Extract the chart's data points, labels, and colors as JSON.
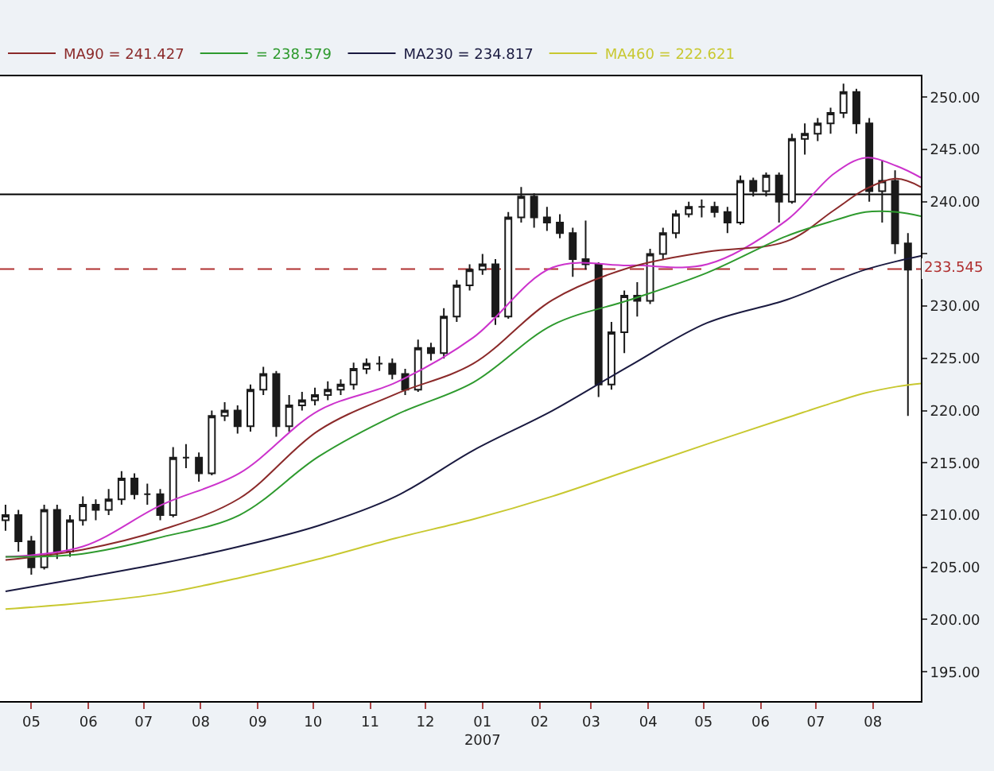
{
  "chart_data": {
    "type": "candlestick",
    "color": "#1a1a1a",
    "x": [
      "2006-04-17",
      "2006-04-24",
      "2006-05-01",
      "2006-05-08",
      "2006-05-15",
      "2006-05-22",
      "2006-05-29",
      "2006-06-05",
      "2006-06-12",
      "2006-06-19",
      "2006-06-26",
      "2006-07-03",
      "2006-07-10",
      "2006-07-17",
      "2006-07-24",
      "2006-07-31",
      "2006-08-07",
      "2006-08-14",
      "2006-08-21",
      "2006-08-28",
      "2006-09-04",
      "2006-09-11",
      "2006-09-18",
      "2006-09-25",
      "2006-10-02",
      "2006-10-09",
      "2006-10-16",
      "2006-10-23",
      "2006-10-30",
      "2006-11-06",
      "2006-11-13",
      "2006-11-20",
      "2006-11-27",
      "2006-12-04",
      "2006-12-11",
      "2006-12-18",
      "2006-12-25",
      "2007-01-01",
      "2007-01-08",
      "2007-01-15",
      "2007-01-22",
      "2007-01-29",
      "2007-02-05",
      "2007-02-12",
      "2007-02-19",
      "2007-02-26",
      "2007-03-05",
      "2007-03-12",
      "2007-03-19",
      "2007-03-26",
      "2007-04-02",
      "2007-04-09",
      "2007-04-16",
      "2007-04-23",
      "2007-04-30",
      "2007-05-07",
      "2007-05-14",
      "2007-05-21",
      "2007-05-28",
      "2007-06-04",
      "2007-06-11",
      "2007-06-18",
      "2007-06-25",
      "2007-07-02",
      "2007-07-09",
      "2007-07-16",
      "2007-07-23",
      "2007-07-30",
      "2007-08-06",
      "2007-08-13",
      "2007-08-20"
    ],
    "ohlc": [
      [
        209.5,
        211,
        208.5,
        210
      ],
      [
        210,
        210.5,
        206.5,
        207.5
      ],
      [
        207.5,
        208,
        204.3,
        205
      ],
      [
        205,
        211,
        204.8,
        210.5
      ],
      [
        210.5,
        211,
        205.8,
        206.5
      ],
      [
        206.5,
        210,
        206,
        209.5
      ],
      [
        209.5,
        211.8,
        209,
        211
      ],
      [
        211,
        211.5,
        209.5,
        210.5
      ],
      [
        210.5,
        212.5,
        210,
        211.5
      ],
      [
        211.5,
        214.2,
        211,
        213.5
      ],
      [
        213.5,
        214,
        211.5,
        212
      ],
      [
        212,
        213,
        211,
        212
      ],
      [
        212,
        212.5,
        209.5,
        210
      ],
      [
        210,
        216.5,
        209.8,
        215.5
      ],
      [
        215.5,
        216.8,
        214.5,
        215.5
      ],
      [
        215.5,
        216,
        213.2,
        214
      ],
      [
        214,
        220,
        213.8,
        219.5
      ],
      [
        219.5,
        220.8,
        219,
        220
      ],
      [
        220,
        220.5,
        217.8,
        218.5
      ],
      [
        218.5,
        222.5,
        218,
        222
      ],
      [
        222,
        224.2,
        221.5,
        223.5
      ],
      [
        223.5,
        223.8,
        217.5,
        218.5
      ],
      [
        218.5,
        221.5,
        218,
        220.5
      ],
      [
        220.5,
        221.8,
        220,
        221
      ],
      [
        221,
        222.2,
        220.5,
        221.5
      ],
      [
        221.5,
        222.8,
        221,
        222
      ],
      [
        222,
        223,
        221.5,
        222.5
      ],
      [
        222.5,
        224.6,
        222,
        224
      ],
      [
        224,
        225,
        223.5,
        224.5
      ],
      [
        224.5,
        225.2,
        223.8,
        224.5
      ],
      [
        224.5,
        225,
        223,
        223.5
      ],
      [
        223.5,
        224,
        221.5,
        222
      ],
      [
        222,
        226.8,
        221.8,
        226
      ],
      [
        226,
        226.5,
        224.8,
        225.5
      ],
      [
        225.5,
        229.8,
        225,
        229
      ],
      [
        229,
        232.5,
        228.5,
        232
      ],
      [
        232,
        234,
        231.5,
        233.5
      ],
      [
        233.5,
        235,
        233,
        234
      ],
      [
        234,
        234.5,
        228.2,
        229
      ],
      [
        229,
        239,
        228.8,
        238.5
      ],
      [
        238.5,
        241.4,
        238,
        240.5
      ],
      [
        240.5,
        240.8,
        237.5,
        238.5
      ],
      [
        238.5,
        239.5,
        237.2,
        238
      ],
      [
        238,
        238.8,
        236.5,
        237
      ],
      [
        237,
        237.5,
        232.8,
        234.5
      ],
      [
        234.5,
        238.2,
        233.5,
        234
      ],
      [
        234,
        234.2,
        221.3,
        222.5
      ],
      [
        222.5,
        228.5,
        222,
        227.5
      ],
      [
        227.5,
        231.5,
        225.5,
        231
      ],
      [
        231,
        232.3,
        229,
        230.5
      ],
      [
        230.5,
        235.5,
        230.2,
        235
      ],
      [
        235,
        237.5,
        234.5,
        237
      ],
      [
        237,
        239.2,
        236.5,
        238.8
      ],
      [
        238.8,
        240,
        238.5,
        239.5
      ],
      [
        239.5,
        240.2,
        238.5,
        239.5
      ],
      [
        239.5,
        240,
        238.5,
        239
      ],
      [
        239,
        239.5,
        237,
        238
      ],
      [
        238,
        242.5,
        237.8,
        242
      ],
      [
        242,
        242.3,
        240.5,
        241
      ],
      [
        241,
        242.8,
        240.5,
        242.5
      ],
      [
        242.5,
        242.8,
        238,
        240
      ],
      [
        240,
        246.5,
        239.8,
        246
      ],
      [
        246,
        247.5,
        244.5,
        246.5
      ],
      [
        246.5,
        248,
        245.8,
        247.5
      ],
      [
        247.5,
        249,
        246.5,
        248.5
      ],
      [
        248.5,
        251.3,
        248,
        250.5
      ],
      [
        250.5,
        250.8,
        246.5,
        247.5
      ],
      [
        247.5,
        248,
        240,
        241
      ],
      [
        241,
        244,
        238,
        242
      ],
      [
        242,
        243,
        235,
        236
      ],
      [
        236,
        237,
        219.5,
        233.5
      ]
    ],
    "series": [
      {
        "type": "line",
        "color": "#cc33cc",
        "x": [
          "2006-04-17",
          "2006-05-29",
          "2006-07-11",
          "2006-08-22",
          "2006-10-04",
          "2006-11-15",
          "2006-12-27",
          "2007-02-08",
          "2007-03-22",
          "2007-05-03",
          "2007-06-15",
          "2007-07-11",
          "2007-07-28",
          "2007-08-14",
          "2007-08-27"
        ],
        "values": [
          206,
          207,
          211,
          214,
          220,
          222.7,
          227,
          233.7,
          233.9,
          234,
          238.2,
          242.7,
          244.2,
          243.4,
          242.3
        ]
      },
      {
        "type": "line",
        "name": "MA90 = 241.427",
        "color": "#8b2a2a",
        "x": [
          "2006-04-17",
          "2006-05-29",
          "2006-07-11",
          "2006-08-22",
          "2006-10-04",
          "2006-11-15",
          "2006-12-27",
          "2007-02-08",
          "2007-03-22",
          "2007-05-03",
          "2007-06-15",
          "2007-07-11",
          "2007-07-28",
          "2007-08-14",
          "2007-08-27"
        ],
        "values": [
          205.7,
          206.7,
          208.6,
          211.6,
          218.1,
          221.6,
          224.5,
          230.6,
          233.7,
          235.2,
          236.2,
          239.2,
          241.2,
          242.2,
          241.4
        ]
      },
      {
        "type": "line",
        "name": "= 238.579",
        "color": "#2e9a2e",
        "x": [
          "2006-04-17",
          "2006-05-29",
          "2006-07-11",
          "2006-08-22",
          "2006-10-04",
          "2006-11-15",
          "2006-12-27",
          "2007-02-08",
          "2007-03-22",
          "2007-05-03",
          "2007-06-15",
          "2007-07-11",
          "2007-07-28",
          "2007-08-14",
          "2007-08-27"
        ],
        "values": [
          206,
          206.3,
          207.9,
          210,
          215.6,
          219.6,
          222.7,
          228.2,
          230.6,
          233.2,
          236.7,
          238.2,
          239,
          239,
          238.6
        ]
      },
      {
        "type": "line",
        "name": "MA230 = 234.817",
        "color": "#1a1a40",
        "x": [
          "2006-04-17",
          "2006-05-29",
          "2006-07-11",
          "2006-08-22",
          "2006-10-04",
          "2006-11-15",
          "2006-12-27",
          "2007-02-08",
          "2007-03-22",
          "2007-05-03",
          "2007-06-15",
          "2007-07-11",
          "2007-07-28",
          "2007-08-14",
          "2007-08-27"
        ],
        "values": [
          202.7,
          204,
          205.4,
          207,
          209,
          211.8,
          216.2,
          220,
          224.3,
          228.4,
          230.6,
          232.4,
          233.5,
          234.3,
          234.8
        ]
      },
      {
        "type": "line",
        "name": "MA460 = 222.621",
        "color": "#c8c830",
        "x": [
          "2006-04-17",
          "2006-05-29",
          "2006-07-11",
          "2006-08-22",
          "2006-10-04",
          "2006-11-15",
          "2006-12-27",
          "2007-02-08",
          "2007-03-22",
          "2007-05-03",
          "2007-06-15",
          "2007-07-11",
          "2007-07-28",
          "2007-08-14",
          "2007-08-27"
        ],
        "values": [
          201,
          201.6,
          202.5,
          204,
          205.8,
          207.8,
          209.6,
          211.8,
          214.3,
          216.8,
          219.3,
          220.8,
          221.7,
          222.3,
          222.6
        ]
      }
    ],
    "xlim": [
      "2006-04-14",
      "2007-08-27"
    ],
    "xticks": [
      {
        "value": "2006-05-01",
        "label": "05"
      },
      {
        "value": "2006-06-01",
        "label": "06"
      },
      {
        "value": "2006-07-01",
        "label": "07"
      },
      {
        "value": "2006-08-01",
        "label": "08"
      },
      {
        "value": "2006-09-01",
        "label": "09"
      },
      {
        "value": "2006-10-01",
        "label": "10"
      },
      {
        "value": "2006-11-01",
        "label": "11"
      },
      {
        "value": "2006-12-01",
        "label": "12"
      },
      {
        "value": "2007-01-01",
        "label": "01\n2007"
      },
      {
        "value": "2007-02-01",
        "label": "02"
      },
      {
        "value": "2007-03-01",
        "label": "03"
      },
      {
        "value": "2007-04-01",
        "label": "04"
      },
      {
        "value": "2007-05-01",
        "label": "05"
      },
      {
        "value": "2007-06-01",
        "label": "06"
      },
      {
        "value": "2007-07-01",
        "label": "07"
      },
      {
        "value": "2007-08-01",
        "label": "08"
      }
    ],
    "ylim": [
      192.2,
      252
    ],
    "yticks": [
      {
        "value": 195,
        "label": "195.00"
      },
      {
        "value": 200,
        "label": "200.00"
      },
      {
        "value": 205,
        "label": "205.00"
      },
      {
        "value": 210,
        "label": "210.00"
      },
      {
        "value": 215,
        "label": "215.00"
      },
      {
        "value": 220,
        "label": "220.00"
      },
      {
        "value": 225,
        "label": "225.00"
      },
      {
        "value": 230,
        "label": "230.00"
      },
      {
        "value": 235,
        "label": null
      },
      {
        "value": 240,
        "label": "240.00"
      },
      {
        "value": 245,
        "label": "245.00"
      },
      {
        "value": 250,
        "label": "250.00"
      }
    ],
    "ref_lines": [
      {
        "axis": "y",
        "value": 240.7,
        "color": "#000000",
        "line_style": "solid"
      },
      {
        "axis": "y",
        "value": 233.545,
        "label": "233.545",
        "color": "#b03030",
        "line_style": "dashed"
      }
    ],
    "grid": false,
    "legend": "top left"
  }
}
